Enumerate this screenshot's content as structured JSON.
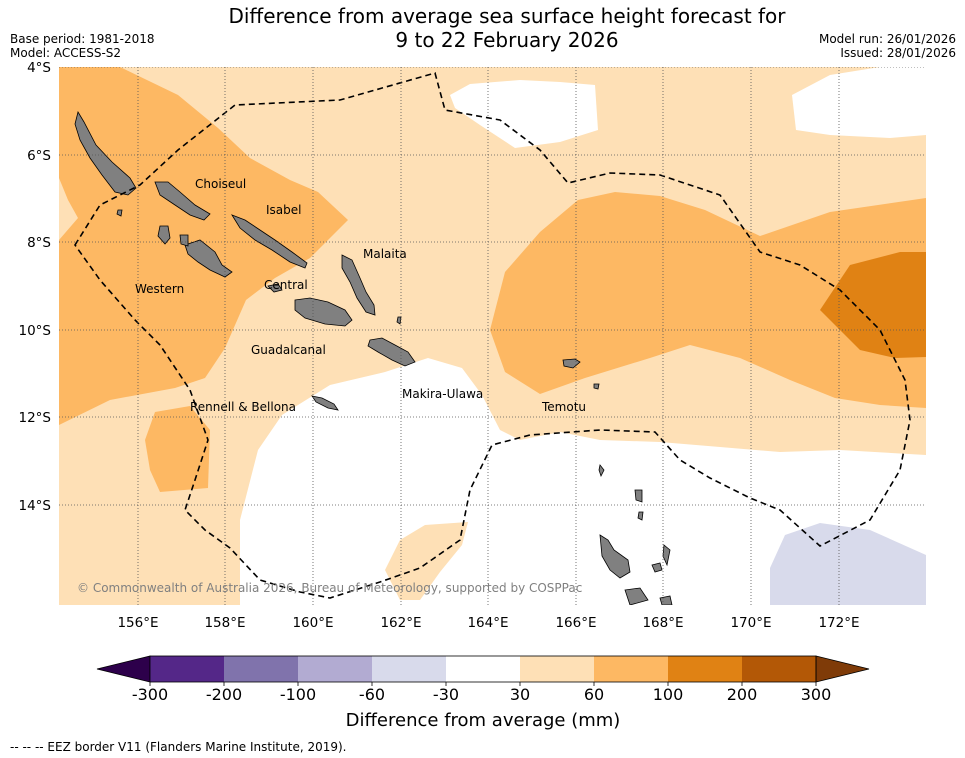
{
  "header": {
    "title_line1": "Difference from average sea surface height forecast for",
    "title_line2": "9 to 22 February 2026",
    "base_period": "Base period: 1981-2018",
    "model": "Model: ACCESS-S2",
    "model_run": "Model run: 26/01/2026",
    "issued": "Issued: 28/01/2026"
  },
  "map": {
    "lat_labels": [
      "4°S",
      "6°S",
      "8°S",
      "10°S",
      "12°S",
      "14°S"
    ],
    "lon_labels": [
      "156°E",
      "158°E",
      "160°E",
      "162°E",
      "164°E",
      "166°E",
      "168°E",
      "170°E",
      "172°E"
    ],
    "places": [
      "Choiseul",
      "Isabel",
      "Malaita",
      "Western",
      "Central",
      "Guadalcanal",
      "Rennell & Bellona",
      "Makira-Ulawa",
      "Temotu"
    ],
    "copyright": "© Commonwealth of Australia 2026, Bureau of Meteorology, supported by COSPPac"
  },
  "legend": {
    "colors": [
      "#2d004b",
      "#542788",
      "#8073ac",
      "#b2abd2",
      "#d8daeb",
      "#ffffff",
      "#fee0b6",
      "#fdb863",
      "#e08214",
      "#b35806",
      "#7f3b08"
    ],
    "ticks": [
      "-300",
      "-200",
      "-100",
      "-60",
      "-30",
      "30",
      "60",
      "100",
      "200",
      "300"
    ],
    "label": "Difference from average (mm)",
    "eez_note": "--  --  -- EEZ border V11 (Flanders Marine Institute, 2019)."
  }
}
